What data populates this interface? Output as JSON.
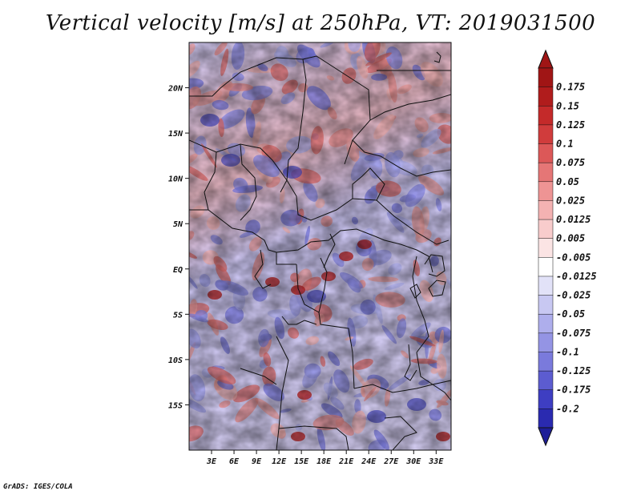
{
  "title": "Vertical velocity [m/s] at 250hPa, VT: 2019031500",
  "footer": "GrADS: IGES/COLA",
  "map": {
    "variable": "Vertical velocity",
    "units": "m/s",
    "level": "250hPa",
    "valid_time": "2019031500",
    "lon_range": [
      0,
      35
    ],
    "lat_range": [
      -20,
      25
    ],
    "lat_ticks": [
      {
        "value": 20,
        "label": "20N"
      },
      {
        "value": 15,
        "label": "15N"
      },
      {
        "value": 10,
        "label": "10N"
      },
      {
        "value": 5,
        "label": "5N"
      },
      {
        "value": 0,
        "label": "EQ"
      },
      {
        "value": -5,
        "label": "5S"
      },
      {
        "value": -10,
        "label": "10S"
      },
      {
        "value": -15,
        "label": "15S"
      }
    ],
    "lon_ticks": [
      {
        "value": 3,
        "label": "3E"
      },
      {
        "value": 6,
        "label": "6E"
      },
      {
        "value": 9,
        "label": "9E"
      },
      {
        "value": 12,
        "label": "12E"
      },
      {
        "value": 15,
        "label": "15E"
      },
      {
        "value": 18,
        "label": "18E"
      },
      {
        "value": 21,
        "label": "21E"
      },
      {
        "value": 24,
        "label": "24E"
      },
      {
        "value": 27,
        "label": "27E"
      },
      {
        "value": 30,
        "label": "30E"
      },
      {
        "value": 33,
        "label": "33E"
      }
    ]
  },
  "colorbar": {
    "levels": [
      {
        "label": "0.175",
        "color": "#b01c1c"
      },
      {
        "label": "0.15",
        "color": "#c42a2a"
      },
      {
        "label": "0.125",
        "color": "#d03c3c"
      },
      {
        "label": "0.1",
        "color": "#dc5858"
      },
      {
        "label": "0.075",
        "color": "#e57676"
      },
      {
        "label": "0.05",
        "color": "#ee9494"
      },
      {
        "label": "0.025",
        "color": "#f4b2b2"
      },
      {
        "label": "0.0125",
        "color": "#f8cccc"
      },
      {
        "label": "0.005",
        "color": "#fbe4e4"
      },
      {
        "label": "-0.005",
        "color": "#ffffff"
      },
      {
        "label": "-0.0125",
        "color": "#e2e2f8"
      },
      {
        "label": "-0.025",
        "color": "#c8c8f2"
      },
      {
        "label": "-0.05",
        "color": "#aeaeec"
      },
      {
        "label": "-0.075",
        "color": "#9494e4"
      },
      {
        "label": "-0.1",
        "color": "#7a7adc"
      },
      {
        "label": "-0.125",
        "color": "#5c5cd0"
      },
      {
        "label": "-0.175",
        "color": "#3e3ec2"
      },
      {
        "label": "-0.2",
        "color": "#2a2ab0"
      }
    ],
    "top_color": "#a01515",
    "bottom_color": "#1e1e98"
  }
}
